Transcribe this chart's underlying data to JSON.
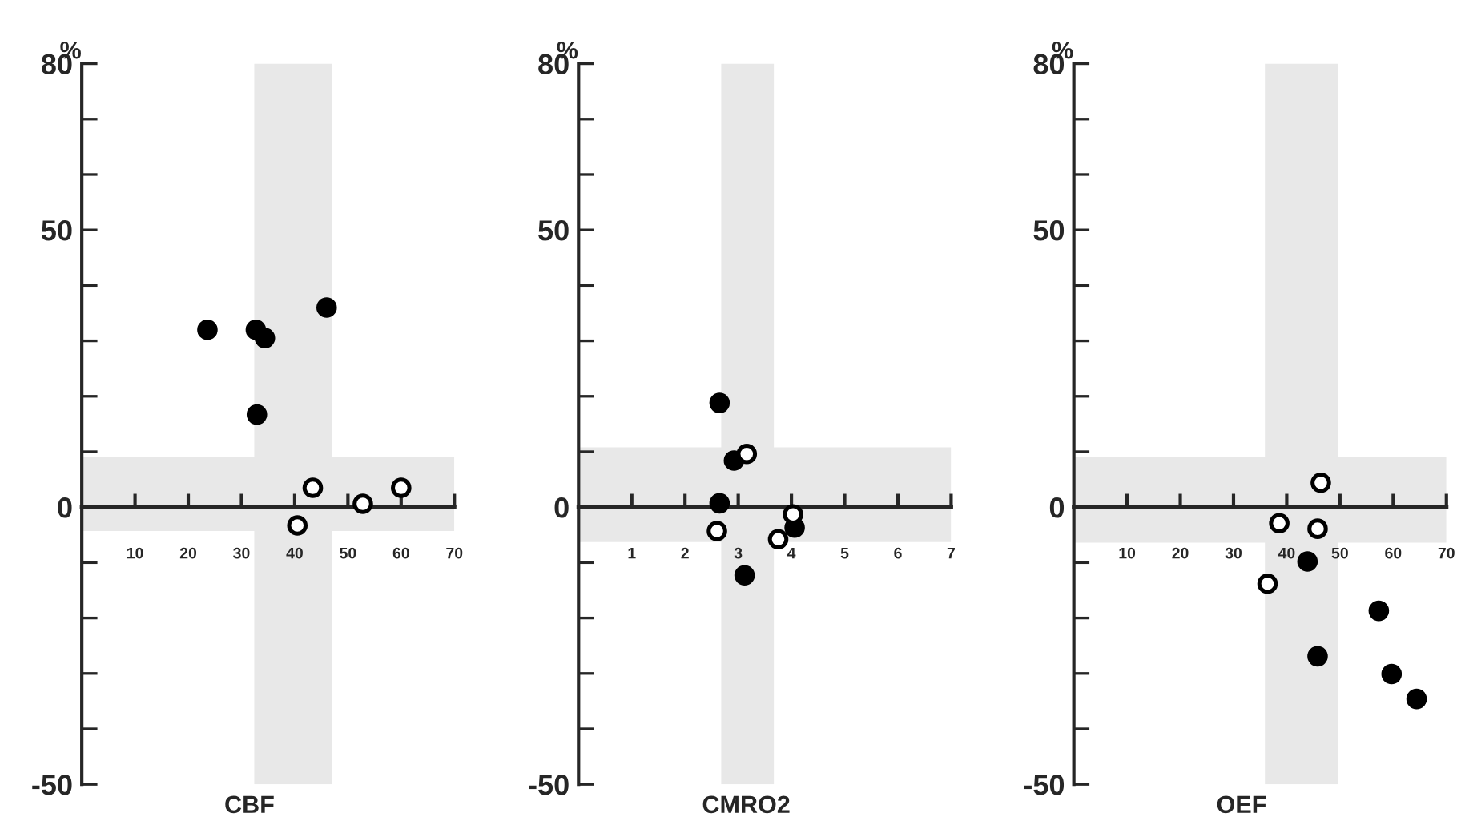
{
  "chart_data": [
    {
      "type": "scatter",
      "xlabel": "CBF",
      "ylabel": "%",
      "xlim": [
        0,
        70
      ],
      "ylim": [
        -50,
        80
      ],
      "xticks": [
        10,
        20,
        30,
        40,
        50,
        60,
        70
      ],
      "yticks": [
        -50,
        {
          "value": -40,
          "label": null
        },
        {
          "value": -30,
          "label": null
        },
        {
          "value": -20,
          "label": null
        },
        {
          "value": -10,
          "label": null
        },
        0,
        {
          "value": 10,
          "label": null
        },
        {
          "value": 20,
          "label": null
        },
        {
          "value": 30,
          "label": null
        },
        {
          "value": 40,
          "label": null
        },
        50,
        {
          "value": 60,
          "label": null
        },
        {
          "value": 70,
          "label": null
        },
        80
      ],
      "marker": "circle",
      "grid": false,
      "legend": false,
      "bands": [
        {
          "axis": "x",
          "from": 32.4,
          "to": 47,
          "color": "#e8e8e8"
        },
        {
          "axis": "y",
          "from": -4.3,
          "to": 9,
          "color": "#e8e8e8"
        }
      ],
      "series": [
        {
          "color": "#000000",
          "x": [
            23.6,
            32.7,
            34.4,
            32.9,
            46
          ],
          "values": [
            32,
            32,
            30.5,
            16.7,
            36
          ]
        },
        {
          "color": "#ffffff",
          "x": [
            40.5,
            43.4,
            52.8,
            60
          ],
          "values": [
            -3.3,
            3.5,
            0.6,
            3.5
          ]
        }
      ]
    },
    {
      "type": "scatter",
      "xlabel": "CMRO2",
      "ylabel": "%",
      "xlim": [
        0,
        7
      ],
      "ylim": [
        -50,
        80
      ],
      "xticks": [
        1,
        2,
        3,
        4,
        5,
        6,
        7
      ],
      "yticks": [
        -50,
        {
          "value": -40,
          "label": null
        },
        {
          "value": -30,
          "label": null
        },
        {
          "value": -20,
          "label": null
        },
        {
          "value": -10,
          "label": null
        },
        0,
        {
          "value": 10,
          "label": null
        },
        {
          "value": 20,
          "label": null
        },
        {
          "value": 30,
          "label": null
        },
        {
          "value": 40,
          "label": null
        },
        50,
        {
          "value": 60,
          "label": null
        },
        {
          "value": 70,
          "label": null
        },
        80
      ],
      "marker": "circle",
      "grid": false,
      "legend": false,
      "bands": [
        {
          "axis": "x",
          "from": 2.68,
          "to": 3.67,
          "color": "#e8e8e8"
        },
        {
          "axis": "y",
          "from": -6.3,
          "to": 10.8,
          "color": "#e8e8e8"
        }
      ],
      "series": [
        {
          "color": "#000000",
          "x": [
            2.65,
            2.65,
            2.92,
            3.12,
            4.06
          ],
          "values": [
            18.8,
            0.7,
            8.4,
            -12.3,
            -3.7
          ]
        },
        {
          "color": "#ffffff",
          "x": [
            2.6,
            3.16,
            3.75,
            4.03
          ],
          "values": [
            -4.3,
            9.6,
            -5.8,
            -1.3
          ]
        }
      ]
    },
    {
      "type": "scatter",
      "xlabel": "OEF",
      "ylabel": "%",
      "xlim": [
        0,
        70
      ],
      "ylim": [
        -50,
        80
      ],
      "xticks": [
        10,
        20,
        30,
        40,
        50,
        60,
        70
      ],
      "yticks": [
        -50,
        {
          "value": -40,
          "label": null
        },
        {
          "value": -30,
          "label": null
        },
        {
          "value": -20,
          "label": null
        },
        {
          "value": -10,
          "label": null
        },
        0,
        {
          "value": 10,
          "label": null
        },
        {
          "value": 20,
          "label": null
        },
        {
          "value": 30,
          "label": null
        },
        {
          "value": 40,
          "label": null
        },
        50,
        {
          "value": 60,
          "label": null
        },
        {
          "value": 70,
          "label": null
        },
        80
      ],
      "marker": "circle",
      "grid": false,
      "legend": false,
      "bands": [
        {
          "axis": "x",
          "from": 35.9,
          "to": 49.7,
          "color": "#e8e8e8"
        },
        {
          "axis": "y",
          "from": -6.4,
          "to": 9.1,
          "color": "#e8e8e8"
        }
      ],
      "series": [
        {
          "color": "#000000",
          "x": [
            43.9,
            45.8,
            57.3,
            59.7,
            64.4
          ],
          "values": [
            -9.8,
            -26.9,
            -18.7,
            -30.1,
            -34.6
          ]
        },
        {
          "color": "#ffffff",
          "x": [
            46.4,
            38.6,
            45.8,
            36.4
          ],
          "values": [
            4.4,
            -2.9,
            -3.9,
            -13.8
          ]
        }
      ]
    }
  ]
}
